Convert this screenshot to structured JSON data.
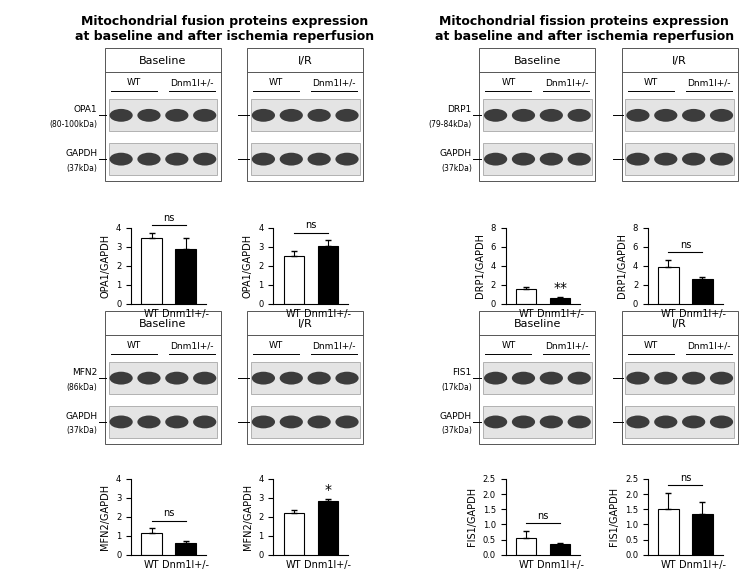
{
  "headers": [
    "Mitochondrial fusion proteins expression\nat baseline and after ischemia reperfusion",
    "Mitochondrial fission proteins expression\nat baseline and after ischemia reperfusion"
  ],
  "chart_data": [
    {
      "type": "bar",
      "title": "Baseline",
      "blot": {
        "protein": "OPA1",
        "protein_size": "(80-100kDa)",
        "control": "GAPDH",
        "control_size": "(37kDa)"
      },
      "categories": [
        "WT",
        "Dnm1l+/-"
      ],
      "values": [
        3.45,
        2.9
      ],
      "errors": [
        0.3,
        0.55
      ],
      "colors": [
        "#ffffff",
        "#000000"
      ],
      "y_label": "OPA1/GAPDH",
      "ylim": [
        0,
        4
      ],
      "yticks": [
        0,
        1,
        2,
        3,
        4
      ],
      "significance": "ns"
    },
    {
      "type": "bar",
      "title": "I/R",
      "categories": [
        "WT",
        "Dnm1l+/-"
      ],
      "values": [
        2.5,
        3.05
      ],
      "errors": [
        0.3,
        0.3
      ],
      "colors": [
        "#ffffff",
        "#000000"
      ],
      "y_label": "OPA1/GAPDH",
      "ylim": [
        0,
        4
      ],
      "yticks": [
        0,
        1,
        2,
        3,
        4
      ],
      "significance": "ns"
    },
    {
      "type": "bar",
      "title": "Baseline",
      "blot": {
        "protein": "DRP1",
        "protein_size": "(79-84kDa)",
        "control": "GAPDH",
        "control_size": "(37kDa)"
      },
      "categories": [
        "WT",
        "Dnm1l+/-"
      ],
      "values": [
        1.5,
        0.6
      ],
      "errors": [
        0.25,
        0.1
      ],
      "colors": [
        "#ffffff",
        "#000000"
      ],
      "y_label": "DRP1/GAPDH",
      "ylim": [
        0,
        8
      ],
      "yticks": [
        0,
        2,
        4,
        6,
        8
      ],
      "significance": "**"
    },
    {
      "type": "bar",
      "title": "I/R",
      "categories": [
        "WT",
        "Dnm1l+/-"
      ],
      "values": [
        3.9,
        2.65
      ],
      "errors": [
        0.7,
        0.2
      ],
      "colors": [
        "#ffffff",
        "#000000"
      ],
      "y_label": "DRP1/GAPDH",
      "ylim": [
        0,
        8
      ],
      "yticks": [
        0,
        2,
        4,
        6,
        8
      ],
      "significance": "ns"
    },
    {
      "type": "bar",
      "title": "Baseline",
      "blot": {
        "protein": "MFN2",
        "protein_size": "(86kDa)",
        "control": "GAPDH",
        "control_size": "(37kDa)"
      },
      "categories": [
        "WT",
        "Dnm1l+/-"
      ],
      "values": [
        1.15,
        0.6
      ],
      "errors": [
        0.25,
        0.12
      ],
      "colors": [
        "#ffffff",
        "#000000"
      ],
      "y_label": "MFN2/GAPDH",
      "ylim": [
        0,
        4
      ],
      "yticks": [
        0,
        1,
        2,
        3,
        4
      ],
      "significance": "ns"
    },
    {
      "type": "bar",
      "title": "I/R",
      "categories": [
        "WT",
        "Dnm1l+/-"
      ],
      "values": [
        2.2,
        2.85
      ],
      "errors": [
        0.15,
        0.1
      ],
      "colors": [
        "#ffffff",
        "#000000"
      ],
      "y_label": "MFN2/GAPDH",
      "ylim": [
        0,
        4
      ],
      "yticks": [
        0,
        1,
        2,
        3,
        4
      ],
      "significance": "*"
    },
    {
      "type": "bar",
      "title": "Baseline",
      "blot": {
        "protein": "FIS1",
        "protein_size": "(17kDa)",
        "control": "GAPDH",
        "control_size": "(37kDa)"
      },
      "categories": [
        "WT",
        "Dnm1l+/-"
      ],
      "values": [
        0.55,
        0.35
      ],
      "errors": [
        0.25,
        0.05
      ],
      "colors": [
        "#ffffff",
        "#000000"
      ],
      "y_label": "FIS1/GAPDH",
      "ylim": [
        0,
        2.5
      ],
      "yticks": [
        {
          "value": 0,
          "label": "0.0"
        },
        {
          "value": 0.5,
          "label": "0.5"
        },
        {
          "value": 1,
          "label": "1.0"
        },
        {
          "value": 1.5,
          "label": "1.5"
        },
        {
          "value": 2,
          "label": "2.0"
        },
        {
          "value": 2.5,
          "label": "2.5"
        }
      ],
      "significance": "ns"
    },
    {
      "type": "bar",
      "title": "I/R",
      "categories": [
        "WT",
        "Dnm1l+/-"
      ],
      "values": [
        1.5,
        1.35
      ],
      "errors": [
        0.55,
        0.4
      ],
      "colors": [
        "#ffffff",
        "#000000"
      ],
      "y_label": "FIS1/GAPDH",
      "ylim": [
        0,
        2.5
      ],
      "yticks": [
        {
          "value": 0,
          "label": "0.0"
        },
        {
          "value": 0.5,
          "label": "0.5"
        },
        {
          "value": 1,
          "label": "1.0"
        },
        {
          "value": 1.5,
          "label": "1.5"
        },
        {
          "value": 2,
          "label": "2.0"
        },
        {
          "value": 2.5,
          "label": "2.5"
        }
      ],
      "significance": "ns"
    }
  ]
}
